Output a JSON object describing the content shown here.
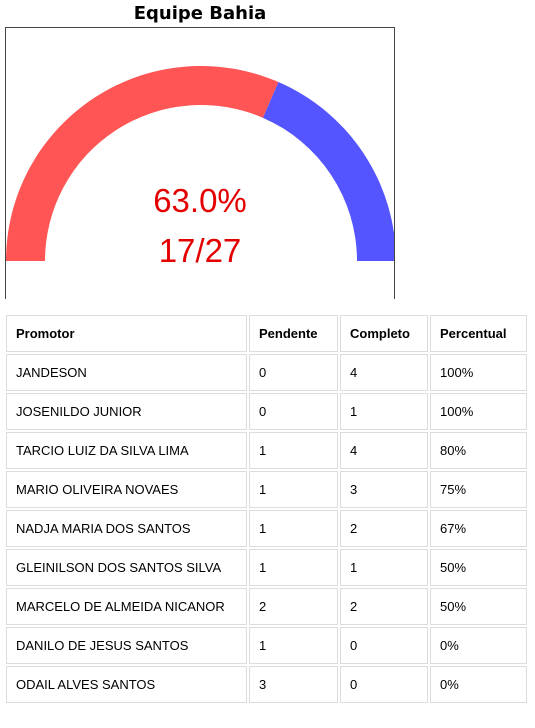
{
  "title": "Equipe Bahia",
  "gauge": {
    "percent_label": "63.0%",
    "fraction_label": "17/27",
    "fraction": 0.63,
    "color_complete": "#ff5555",
    "color_remaining": "#5555ff",
    "color_text": "#e30000"
  },
  "table": {
    "headers": [
      "Promotor",
      "Pendente",
      "Completo",
      "Percentual"
    ],
    "rows": [
      [
        "JANDESON",
        "0",
        "4",
        "100%"
      ],
      [
        "JOSENILDO JUNIOR",
        "0",
        "1",
        "100%"
      ],
      [
        "TARCIO LUIZ DA SILVA LIMA",
        "1",
        "4",
        "80%"
      ],
      [
        "MARIO OLIVEIRA NOVAES",
        "1",
        "3",
        "75%"
      ],
      [
        "NADJA MARIA DOS SANTOS",
        "1",
        "2",
        "67%"
      ],
      [
        "GLEINILSON DOS SANTOS SILVA",
        "1",
        "1",
        "50%"
      ],
      [
        "MARCELO DE ALMEIDA NICANOR",
        "2",
        "2",
        "50%"
      ],
      [
        "DANILO DE JESUS SANTOS",
        "1",
        "0",
        "0%"
      ],
      [
        "ODAIL ALVES SANTOS",
        "3",
        "0",
        "0%"
      ]
    ]
  }
}
